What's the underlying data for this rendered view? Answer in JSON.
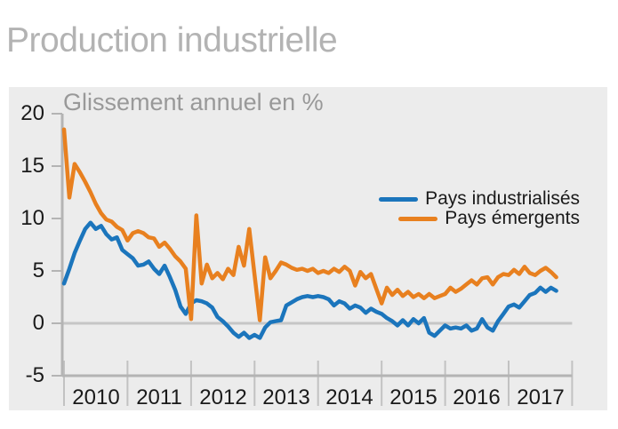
{
  "page": {
    "title": "Production industrielle"
  },
  "chart": {
    "subtitle": "Glissement annuel en %",
    "panel_bg": "#ececec",
    "axis_color": "#b4b4b4",
    "zero_line_color": "#c6c6c6",
    "x_tick_color": "#c2c2c2"
  },
  "chart_data": {
    "type": "line",
    "title": "Production industrielle",
    "subtitle": "Glissement annuel en %",
    "ylabel": "Glissement annuel en %",
    "ylim": [
      -5,
      20
    ],
    "yticks": [
      20,
      15,
      10,
      5,
      0,
      -5
    ],
    "categories": [
      "2010",
      "2011",
      "2012",
      "2013",
      "2014",
      "2015",
      "2016",
      "2017"
    ],
    "x_start": "2010-01",
    "x_end": "2017-10",
    "frequency": "monthly",
    "grid": "zero line only",
    "legend_position": "inside top-right",
    "series": [
      {
        "name": "Pays industrialisés",
        "color": "#1b75bc",
        "values": [
          3.8,
          5.2,
          6.7,
          7.9,
          9.0,
          9.6,
          9.0,
          9.3,
          8.5,
          8.0,
          8.2,
          7.0,
          6.6,
          6.2,
          5.5,
          5.6,
          5.9,
          5.2,
          4.7,
          5.5,
          4.4,
          3.2,
          1.6,
          0.9,
          1.9,
          2.2,
          2.1,
          1.9,
          1.5,
          0.6,
          0.2,
          -0.3,
          -0.9,
          -1.3,
          -0.9,
          -1.4,
          -1.1,
          -1.4,
          -0.4,
          0.1,
          0.2,
          0.3,
          1.7,
          2.0,
          2.3,
          2.5,
          2.6,
          2.5,
          2.6,
          2.5,
          2.3,
          1.7,
          2.1,
          1.9,
          1.4,
          1.7,
          1.5,
          1.0,
          1.4,
          1.1,
          0.9,
          0.5,
          0.2,
          -0.2,
          0.3,
          -0.2,
          0.4,
          0.0,
          0.5,
          -0.9,
          -1.2,
          -0.7,
          -0.2,
          -0.5,
          -0.4,
          -0.5,
          -0.2,
          -0.7,
          -0.5,
          0.4,
          -0.4,
          -0.7,
          0.2,
          0.9,
          1.6,
          1.8,
          1.5,
          2.1,
          2.7,
          2.9,
          3.4,
          3.0,
          3.4,
          3.1
        ]
      },
      {
        "name": "Pays émergents",
        "color": "#e8801f",
        "values": [
          18.5,
          12.0,
          15.2,
          14.4,
          13.5,
          12.5,
          11.4,
          10.5,
          9.9,
          9.7,
          9.2,
          8.9,
          7.9,
          8.6,
          8.8,
          8.6,
          8.2,
          8.1,
          7.3,
          7.7,
          7.1,
          6.4,
          5.9,
          5.2,
          0.4,
          10.3,
          3.8,
          5.6,
          4.3,
          4.8,
          4.2,
          5.2,
          4.6,
          7.3,
          5.5,
          9.0,
          4.6,
          0.3,
          6.3,
          4.3,
          5.0,
          5.8,
          5.6,
          5.3,
          5.1,
          5.2,
          5.0,
          5.2,
          4.8,
          5.0,
          4.8,
          5.2,
          4.9,
          5.4,
          5.0,
          3.6,
          4.9,
          4.3,
          4.7,
          3.3,
          1.9,
          3.4,
          2.7,
          3.2,
          2.6,
          3.0,
          2.5,
          2.8,
          2.4,
          2.8,
          2.4,
          2.6,
          2.8,
          3.4,
          3.0,
          3.3,
          3.7,
          4.1,
          3.7,
          4.3,
          4.4,
          3.7,
          4.4,
          4.7,
          4.6,
          5.1,
          4.7,
          5.4,
          4.8,
          4.6,
          5.0,
          5.3,
          4.9,
          4.4
        ]
      }
    ]
  }
}
